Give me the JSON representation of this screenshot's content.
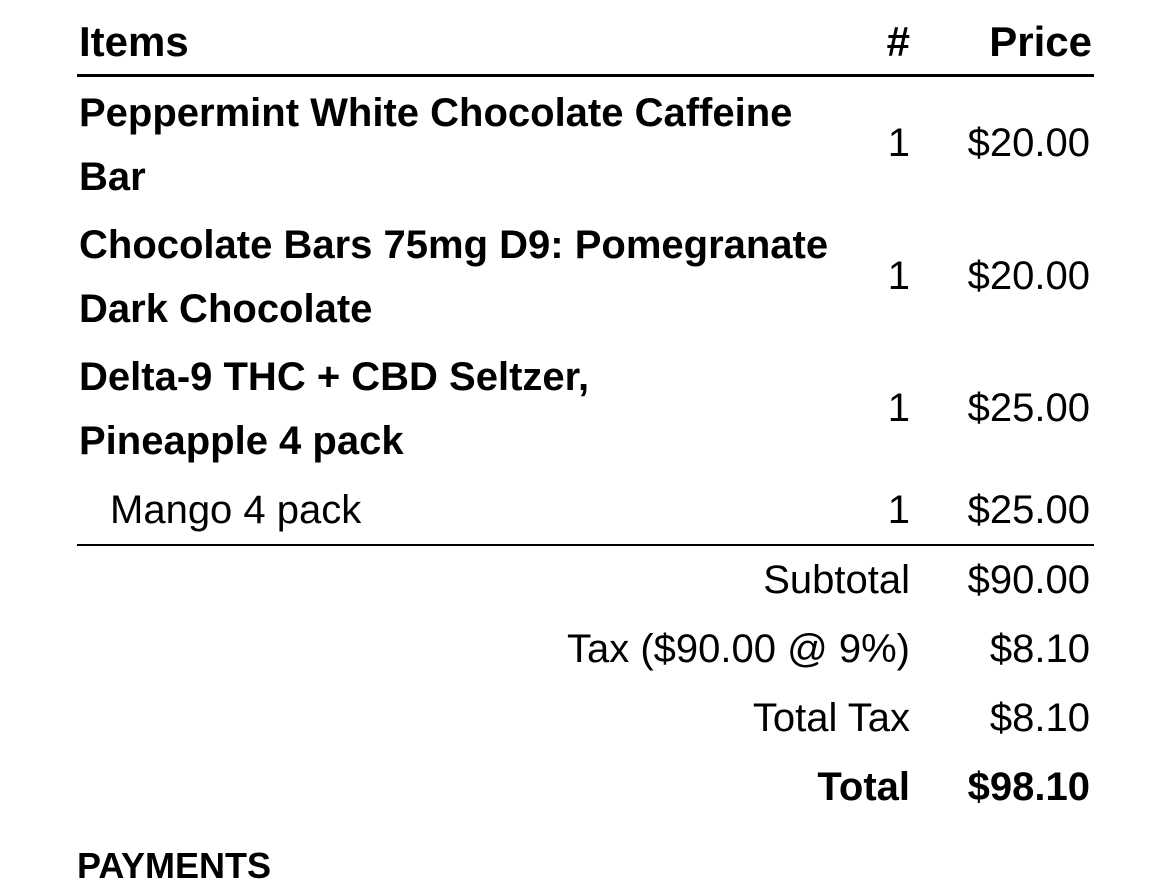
{
  "header": {
    "items": "Items",
    "qty": "#",
    "price": "Price"
  },
  "items": [
    {
      "name": "Peppermint White Chocolate Caffeine Bar",
      "qty": "1",
      "price": "$20.00"
    },
    {
      "name": "Chocolate Bars 75mg D9: Pomegranate Dark Chocolate",
      "qty": "1",
      "price": "$20.00"
    },
    {
      "name": "Delta-9 THC + CBD Seltzer, Pineapple 4 pack",
      "qty": "1",
      "price": "$25.00"
    },
    {
      "name": "Mango 4 pack",
      "qty": "1",
      "price": "$25.00"
    }
  ],
  "summary": {
    "subtotal_label": "Subtotal",
    "subtotal": "$90.00",
    "tax_label": "Tax ($90.00 @ 9%)",
    "tax": "$8.10",
    "total_tax_label": "Total Tax",
    "total_tax": "$8.10",
    "total_label": "Total",
    "total": "$98.10"
  },
  "payments_heading": "PAYMENTS"
}
